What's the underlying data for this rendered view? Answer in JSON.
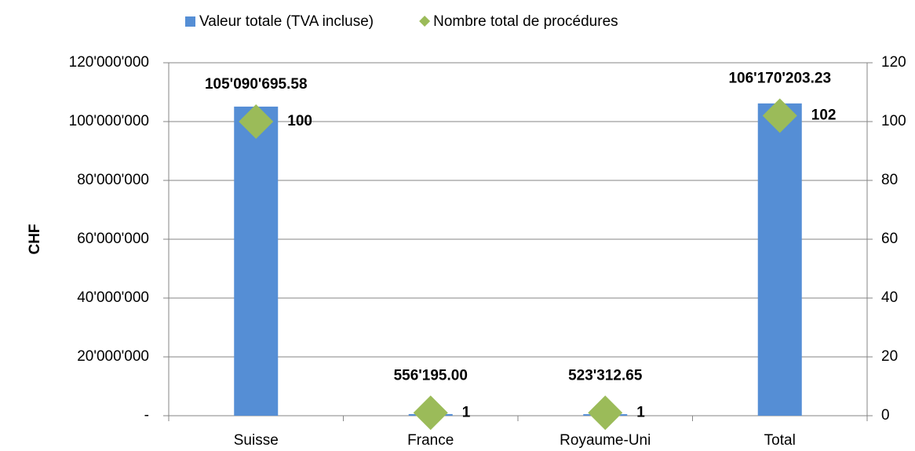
{
  "chart_data": {
    "type": "combo",
    "y_label": "CHF",
    "categories": [
      "Suisse",
      "France",
      "Royaume-Uni",
      "Total"
    ],
    "series": [
      {
        "name": "Valeur totale (TVA incluse)",
        "type": "bar",
        "color": "#558ed5",
        "values": [
          105090695.58,
          556195.0,
          523312.65,
          106170203.23
        ],
        "value_labels": [
          "105'090'695.58",
          "556'195.00",
          "523'312.65",
          "106'170'203.23"
        ]
      },
      {
        "name": "Nombre total de procédures",
        "type": "scatter",
        "axis": "y2",
        "color": "#9bbb59",
        "values": [
          100,
          1,
          1,
          102
        ]
      }
    ],
    "ylim": [
      0,
      120000000
    ],
    "yticks": [
      {
        "value": 0,
        "label": "-"
      },
      {
        "value": 20000000,
        "label": "20'000'000"
      },
      {
        "value": 40000000,
        "label": "40'000'000"
      },
      {
        "value": 60000000,
        "label": "60'000'000"
      },
      {
        "value": 80000000,
        "label": "80'000'000"
      },
      {
        "value": 100000000,
        "label": "100'000'000"
      },
      {
        "value": 120000000,
        "label": "120'000'000"
      }
    ],
    "y2lim": [
      0,
      120
    ],
    "y2ticks": [
      0,
      20,
      40,
      60,
      80,
      100,
      120
    ],
    "grid": true,
    "legend": "top"
  }
}
